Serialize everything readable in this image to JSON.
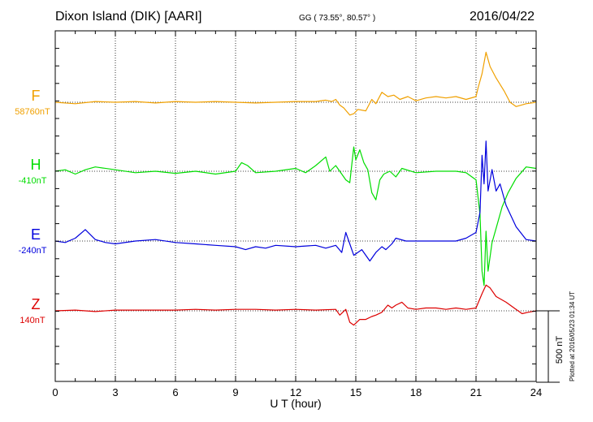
{
  "header": {
    "title": "Dixon Island (DIK)  [AARI]",
    "coords": "GG ( 73.55°,  80.57° )",
    "date": "2016/04/22"
  },
  "plotted_note": "Plotted at 2016/05/23 01:34 UT",
  "chart_data": {
    "type": "line",
    "xlabel": "U T (hour)",
    "xlim": [
      0,
      24
    ],
    "xticks": [
      "0",
      "3",
      "6",
      "9",
      "12",
      "15",
      "18",
      "21",
      "24"
    ],
    "scale_bar": {
      "label": "500 nT",
      "value_nT": 500
    },
    "series": [
      {
        "name": "F",
        "baseline_label": "58760nT",
        "color": "#f0a000",
        "baseline_nT": 58760,
        "points": [
          [
            0,
            0
          ],
          [
            1,
            -10
          ],
          [
            2,
            5
          ],
          [
            3,
            0
          ],
          [
            4,
            5
          ],
          [
            5,
            -5
          ],
          [
            6,
            5
          ],
          [
            7,
            0
          ],
          [
            8,
            5
          ],
          [
            9,
            0
          ],
          [
            10,
            -5
          ],
          [
            11,
            0
          ],
          [
            12,
            5
          ],
          [
            13,
            5
          ],
          [
            13.5,
            15
          ],
          [
            13.8,
            5
          ],
          [
            14,
            20
          ],
          [
            14.2,
            -20
          ],
          [
            14.4,
            -40
          ],
          [
            14.7,
            -90
          ],
          [
            14.9,
            -80
          ],
          [
            15.1,
            -50
          ],
          [
            15.5,
            -60
          ],
          [
            15.8,
            20
          ],
          [
            16,
            -10
          ],
          [
            16.3,
            70
          ],
          [
            16.6,
            40
          ],
          [
            16.9,
            50
          ],
          [
            17.2,
            20
          ],
          [
            17.6,
            40
          ],
          [
            18,
            10
          ],
          [
            18.5,
            30
          ],
          [
            19,
            40
          ],
          [
            19.5,
            30
          ],
          [
            20,
            40
          ],
          [
            20.5,
            20
          ],
          [
            21,
            40
          ],
          [
            21.1,
            100
          ],
          [
            21.3,
            200
          ],
          [
            21.5,
            350
          ],
          [
            21.7,
            250
          ],
          [
            22,
            170
          ],
          [
            22.4,
            80
          ],
          [
            22.7,
            0
          ],
          [
            23,
            -30
          ],
          [
            23.5,
            -10
          ],
          [
            24,
            0
          ]
        ]
      },
      {
        "name": "H",
        "baseline_label": "-410nT",
        "color": "#00dd00",
        "baseline_nT": -410,
        "points": [
          [
            0,
            0
          ],
          [
            0.5,
            10
          ],
          [
            1,
            -20
          ],
          [
            1.5,
            10
          ],
          [
            2,
            30
          ],
          [
            3,
            10
          ],
          [
            4,
            -10
          ],
          [
            5,
            0
          ],
          [
            6,
            -15
          ],
          [
            7,
            0
          ],
          [
            8,
            -20
          ],
          [
            9,
            0
          ],
          [
            9.3,
            60
          ],
          [
            9.6,
            40
          ],
          [
            10,
            -10
          ],
          [
            11,
            0
          ],
          [
            12,
            20
          ],
          [
            12.5,
            -10
          ],
          [
            13,
            40
          ],
          [
            13.5,
            100
          ],
          [
            13.7,
            0
          ],
          [
            14,
            40
          ],
          [
            14.3,
            -20
          ],
          [
            14.5,
            -60
          ],
          [
            14.7,
            -80
          ],
          [
            14.9,
            170
          ],
          [
            15,
            80
          ],
          [
            15.2,
            150
          ],
          [
            15.4,
            60
          ],
          [
            15.6,
            10
          ],
          [
            15.8,
            -150
          ],
          [
            16,
            -200
          ],
          [
            16.2,
            -60
          ],
          [
            16.4,
            -20
          ],
          [
            16.7,
            0
          ],
          [
            17,
            -40
          ],
          [
            17.3,
            20
          ],
          [
            18,
            -10
          ],
          [
            19,
            0
          ],
          [
            20,
            0
          ],
          [
            20.5,
            -10
          ],
          [
            21,
            -60
          ],
          [
            21.2,
            -300
          ],
          [
            21.3,
            -700
          ],
          [
            21.4,
            -800
          ],
          [
            21.5,
            -420
          ],
          [
            21.6,
            -700
          ],
          [
            21.8,
            -500
          ],
          [
            22,
            -400
          ],
          [
            22.3,
            -250
          ],
          [
            22.6,
            -150
          ],
          [
            23,
            -50
          ],
          [
            23.5,
            30
          ],
          [
            24,
            20
          ]
        ]
      },
      {
        "name": "E",
        "baseline_label": "-240nT",
        "color": "#0000dd",
        "baseline_nT": -240,
        "points": [
          [
            0,
            0
          ],
          [
            0.5,
            -10
          ],
          [
            1,
            20
          ],
          [
            1.5,
            80
          ],
          [
            2,
            10
          ],
          [
            2.5,
            -10
          ],
          [
            3,
            -20
          ],
          [
            4,
            0
          ],
          [
            5,
            10
          ],
          [
            6,
            -10
          ],
          [
            7,
            -20
          ],
          [
            8,
            -30
          ],
          [
            9,
            -40
          ],
          [
            9.5,
            -60
          ],
          [
            10,
            -40
          ],
          [
            10.5,
            -50
          ],
          [
            11,
            -30
          ],
          [
            12,
            -40
          ],
          [
            13,
            -30
          ],
          [
            13.5,
            -50
          ],
          [
            14,
            -30
          ],
          [
            14.3,
            -80
          ],
          [
            14.5,
            60
          ],
          [
            14.7,
            -20
          ],
          [
            14.9,
            -100
          ],
          [
            15.3,
            -60
          ],
          [
            15.7,
            -140
          ],
          [
            16,
            -80
          ],
          [
            16.3,
            -40
          ],
          [
            16.5,
            -60
          ],
          [
            16.8,
            -20
          ],
          [
            17,
            20
          ],
          [
            17.5,
            0
          ],
          [
            18,
            0
          ],
          [
            19,
            0
          ],
          [
            20,
            0
          ],
          [
            20.5,
            20
          ],
          [
            21,
            60
          ],
          [
            21.2,
            200
          ],
          [
            21.3,
            600
          ],
          [
            21.4,
            400
          ],
          [
            21.5,
            700
          ],
          [
            21.6,
            350
          ],
          [
            21.8,
            500
          ],
          [
            22,
            350
          ],
          [
            22.2,
            400
          ],
          [
            22.5,
            250
          ],
          [
            23,
            100
          ],
          [
            23.5,
            10
          ],
          [
            24,
            0
          ]
        ]
      },
      {
        "name": "Z",
        "baseline_label": "140nT",
        "color": "#dd0000",
        "baseline_nT": 140,
        "points": [
          [
            0,
            0
          ],
          [
            1,
            5
          ],
          [
            2,
            -5
          ],
          [
            3,
            5
          ],
          [
            4,
            5
          ],
          [
            5,
            5
          ],
          [
            6,
            5
          ],
          [
            7,
            10
          ],
          [
            8,
            5
          ],
          [
            9,
            10
          ],
          [
            10,
            10
          ],
          [
            11,
            5
          ],
          [
            12,
            10
          ],
          [
            13,
            5
          ],
          [
            14,
            10
          ],
          [
            14.2,
            -30
          ],
          [
            14.5,
            10
          ],
          [
            14.7,
            -80
          ],
          [
            14.9,
            -100
          ],
          [
            15.2,
            -60
          ],
          [
            15.5,
            -60
          ],
          [
            15.8,
            -40
          ],
          [
            16,
            -30
          ],
          [
            16.3,
            -10
          ],
          [
            16.6,
            40
          ],
          [
            16.8,
            20
          ],
          [
            17,
            40
          ],
          [
            17.3,
            60
          ],
          [
            17.6,
            20
          ],
          [
            18,
            10
          ],
          [
            18.5,
            20
          ],
          [
            19,
            20
          ],
          [
            19.5,
            10
          ],
          [
            20,
            20
          ],
          [
            20.5,
            10
          ],
          [
            21,
            20
          ],
          [
            21.3,
            120
          ],
          [
            21.5,
            180
          ],
          [
            21.7,
            160
          ],
          [
            22,
            100
          ],
          [
            22.5,
            60
          ],
          [
            23,
            10
          ],
          [
            23.3,
            -20
          ],
          [
            23.6,
            -10
          ],
          [
            24,
            0
          ]
        ]
      }
    ]
  }
}
